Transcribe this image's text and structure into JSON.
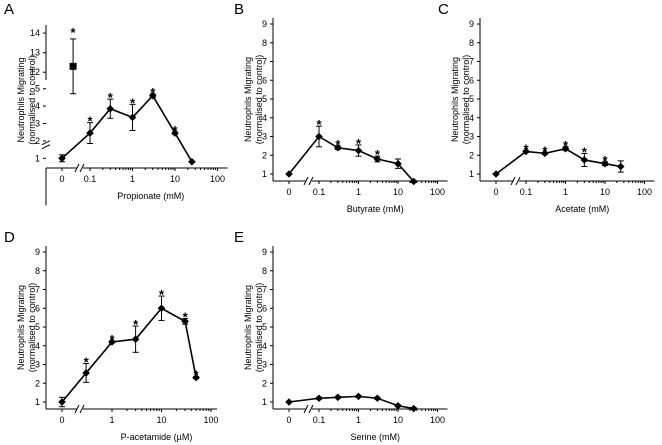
{
  "chart_data": [
    {
      "panel": "A",
      "type": "line",
      "ylabel": "Neutrophils Migrating (normalised to control)",
      "ylabel_lines": [
        "Neutrophils Migrating",
        "(normalised to control)"
      ],
      "xlabel": "Propionate (mM)",
      "x_tick_labels": [
        "0",
        "0.1",
        "1",
        "10",
        "100"
      ],
      "y_tick_labels": [
        "1",
        "2",
        "3",
        "4",
        "5",
        "12",
        "13",
        "14"
      ],
      "y_break": [
        5,
        11.5
      ],
      "control": {
        "x": 0,
        "y": 1.0,
        "err": 0.2
      },
      "series": [
        {
          "x": 0.1,
          "y": 2.45,
          "err": 0.6,
          "sig": true
        },
        {
          "x": 0.3,
          "y": 3.85,
          "err": 0.55,
          "sig": true
        },
        {
          "x": 1,
          "y": 3.35,
          "err": 0.75,
          "sig": true
        },
        {
          "x": 3,
          "y": 4.6,
          "err": 0.1,
          "sig": true
        },
        {
          "x": 10,
          "y": 2.45,
          "err": 0.05,
          "sig": true
        },
        {
          "x": 25,
          "y": 0.8,
          "err": 0.03,
          "sig": false
        }
      ],
      "outlier": {
        "x": 0.04,
        "y": 12.3,
        "err": 1.4,
        "sig": true,
        "marker": "square"
      }
    },
    {
      "panel": "B",
      "type": "line",
      "ylabel": "Neutrophils Migrating (normalised to control)",
      "ylabel_lines": [
        "Neutrophils Migrating",
        "(normalised to control)"
      ],
      "xlabel": "Butyrate (mM)",
      "x_tick_labels": [
        "0",
        "0.1",
        "1",
        "10",
        "100"
      ],
      "y_tick_labels": [
        "1",
        "2",
        "3",
        "4",
        "5",
        "6",
        "7",
        "8",
        "9"
      ],
      "control": {
        "x": 0,
        "y": 1.0,
        "err": 0.03
      },
      "series": [
        {
          "x": 0.1,
          "y": 3.0,
          "err": 0.55,
          "sig": true
        },
        {
          "x": 0.3,
          "y": 2.4,
          "err": 0.1,
          "sig": true
        },
        {
          "x": 1,
          "y": 2.25,
          "err": 0.3,
          "sig": true
        },
        {
          "x": 3,
          "y": 1.8,
          "err": 0.15,
          "sig": true
        },
        {
          "x": 10,
          "y": 1.55,
          "err": 0.25,
          "sig": false
        },
        {
          "x": 25,
          "y": 0.6,
          "err": 0.05,
          "sig": false
        }
      ]
    },
    {
      "panel": "C",
      "type": "line",
      "ylabel": "Neutrophils Migrating (normalised to control)",
      "ylabel_lines": [
        "Neutrophils Migrating",
        "(normalised to control)"
      ],
      "xlabel": "Acetate (mM)",
      "x_tick_labels": [
        "0",
        "0.1",
        "1",
        "10",
        "100"
      ],
      "y_tick_labels": [
        "1",
        "2",
        "3",
        "4",
        "5",
        "6",
        "7",
        "8",
        "9"
      ],
      "control": {
        "x": 0,
        "y": 1.0,
        "err": 0.03
      },
      "series": [
        {
          "x": 0.1,
          "y": 2.2,
          "err": 0.05,
          "sig": true
        },
        {
          "x": 0.3,
          "y": 2.1,
          "err": 0.05,
          "sig": true
        },
        {
          "x": 1,
          "y": 2.35,
          "err": 0.1,
          "sig": true
        },
        {
          "x": 3,
          "y": 1.75,
          "err": 0.35,
          "sig": true
        },
        {
          "x": 10,
          "y": 1.55,
          "err": 0.1,
          "sig": true
        },
        {
          "x": 25,
          "y": 1.4,
          "err": 0.3,
          "sig": false
        }
      ]
    },
    {
      "panel": "D",
      "type": "line",
      "ylabel": "Neutrophils Migrating (normalised to control)",
      "ylabel_lines": [
        "Neutrophils Migrating",
        "(normalised to control)"
      ],
      "xlabel": "P-acetamide (µM)",
      "x_tick_labels": [
        "0",
        "1",
        "10",
        "100"
      ],
      "y_tick_labels": [
        "1",
        "2",
        "3",
        "4",
        "5",
        "6",
        "7",
        "8",
        "9"
      ],
      "control": {
        "x": 0,
        "y": 1.0,
        "err": 0.25
      },
      "series": [
        {
          "x": 0.3,
          "y": 2.55,
          "err": 0.5,
          "sig": true
        },
        {
          "x": 1,
          "y": 4.2,
          "err": 0.05,
          "sig": true
        },
        {
          "x": 3,
          "y": 4.35,
          "err": 0.7,
          "sig": true
        },
        {
          "x": 10,
          "y": 6.0,
          "err": 0.65,
          "sig": true
        },
        {
          "x": 30,
          "y": 5.3,
          "err": 0.15,
          "sig": true
        },
        {
          "x": 50,
          "y": 2.3,
          "err": 0.05,
          "sig": true
        }
      ]
    },
    {
      "panel": "E",
      "type": "line",
      "ylabel": "Neutrophils Migrating (normalised to control)",
      "ylabel_lines": [
        "Neutrophils Migrating",
        "(normalised to control)"
      ],
      "xlabel": "Serine (mM)",
      "x_tick_labels": [
        "0",
        "0.1",
        "1",
        "10",
        "100"
      ],
      "y_tick_labels": [
        "1",
        "2",
        "3",
        "4",
        "5",
        "6",
        "7",
        "8",
        "9"
      ],
      "control": {
        "x": 0,
        "y": 1.0,
        "err": 0.03
      },
      "series": [
        {
          "x": 0.1,
          "y": 1.2,
          "err": 0.05,
          "sig": false
        },
        {
          "x": 0.3,
          "y": 1.25,
          "err": 0.05,
          "sig": false
        },
        {
          "x": 1,
          "y": 1.3,
          "err": 0.05,
          "sig": false
        },
        {
          "x": 3,
          "y": 1.2,
          "err": 0.05,
          "sig": false
        },
        {
          "x": 10,
          "y": 0.8,
          "err": 0.05,
          "sig": false
        },
        {
          "x": 25,
          "y": 0.65,
          "err": 0.05,
          "sig": false
        }
      ]
    }
  ]
}
